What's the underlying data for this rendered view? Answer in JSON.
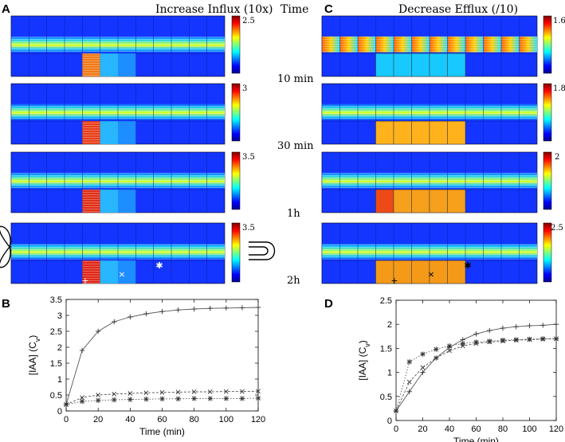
{
  "panels": {
    "A": {
      "letter": "A",
      "title": "Increase Influx (10x)"
    },
    "C": {
      "letter": "C",
      "title": "Decrease Efflux (/10)"
    },
    "time_header": "Time",
    "time_labels": [
      "10 min",
      "30 min",
      "1h",
      "2h"
    ],
    "colorbar_max_A": [
      "2.5",
      "3",
      "3.5",
      "3.5"
    ],
    "colorbar_max_C": [
      "1.6",
      "1.8",
      "2",
      "2.5"
    ]
  },
  "chart_data": [
    {
      "id": "B",
      "letter": "B",
      "type": "line",
      "xlabel": "Time (min)",
      "ylabel": "[IAA] (C",
      "ylabel_sub": "v",
      "ylabel_end": ")",
      "xlim": [
        0,
        120
      ],
      "ylim": [
        0,
        3.5
      ],
      "xticks": [
        "0",
        "20",
        "40",
        "60",
        "80",
        "100",
        "120"
      ],
      "yticks": [
        "0",
        "0.5",
        "1",
        "1.5",
        "2",
        "2.5",
        "3",
        "3.5"
      ],
      "x": [
        0,
        10,
        20,
        30,
        40,
        50,
        60,
        70,
        80,
        90,
        100,
        110,
        120
      ],
      "series": [
        {
          "name": "plus",
          "marker": "+",
          "values": [
            0.2,
            1.9,
            2.5,
            2.8,
            2.95,
            3.05,
            3.12,
            3.17,
            3.2,
            3.22,
            3.23,
            3.24,
            3.25
          ]
        },
        {
          "name": "cross",
          "marker": "x",
          "values": [
            0.2,
            0.42,
            0.5,
            0.53,
            0.55,
            0.57,
            0.58,
            0.59,
            0.6,
            0.6,
            0.61,
            0.61,
            0.62
          ]
        },
        {
          "name": "star",
          "marker": "*",
          "values": [
            0.2,
            0.3,
            0.33,
            0.35,
            0.36,
            0.37,
            0.38,
            0.38,
            0.39,
            0.39,
            0.39,
            0.39,
            0.4
          ]
        }
      ]
    },
    {
      "id": "D",
      "letter": "D",
      "type": "line",
      "xlabel": "Time (min)",
      "ylabel": "[IAA] (C",
      "ylabel_sub": "v",
      "ylabel_end": ")",
      "xlim": [
        0,
        120
      ],
      "ylim": [
        0,
        2.5
      ],
      "xticks": [
        "0",
        "20",
        "40",
        "60",
        "80",
        "100",
        "120"
      ],
      "yticks": [
        "0",
        "0.5",
        "1",
        "1.5",
        "2",
        "2.5"
      ],
      "x": [
        0,
        10,
        20,
        30,
        40,
        50,
        60,
        70,
        80,
        90,
        100,
        110,
        120
      ],
      "series": [
        {
          "name": "plus",
          "marker": "+",
          "values": [
            0.2,
            0.6,
            1.0,
            1.3,
            1.52,
            1.68,
            1.8,
            1.87,
            1.92,
            1.95,
            1.97,
            1.98,
            2.0
          ]
        },
        {
          "name": "cross",
          "marker": "x",
          "values": [
            0.2,
            0.8,
            1.1,
            1.3,
            1.45,
            1.55,
            1.6,
            1.63,
            1.65,
            1.67,
            1.68,
            1.69,
            1.7
          ]
        },
        {
          "name": "star",
          "marker": "*",
          "values": [
            0.2,
            1.22,
            1.38,
            1.48,
            1.55,
            1.6,
            1.63,
            1.65,
            1.67,
            1.68,
            1.69,
            1.7,
            1.7
          ]
        }
      ]
    }
  ],
  "colors": {
    "axis": "#000000",
    "line": "#444444",
    "frame_bg": "#0a2aff"
  }
}
